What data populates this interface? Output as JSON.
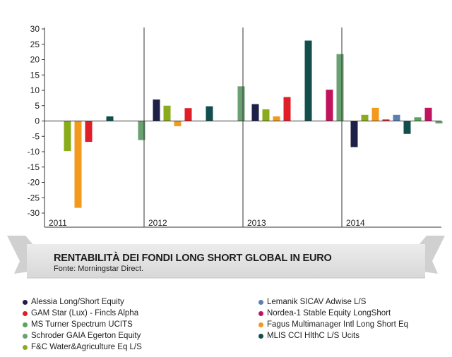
{
  "chart_data": {
    "type": "bar",
    "title": "RENTABILITÀ DEI  FONDI LONG SHORT GLOBAL IN EURO",
    "source": "Fonte: Morningstar Direct.",
    "ylim": [
      -30,
      30
    ],
    "y_ticks": [
      30,
      25,
      20,
      15,
      10,
      5,
      0,
      -5,
      -10,
      -15,
      -20,
      -25,
      -30
    ],
    "x_year_labels": [
      "2011",
      "2012",
      "2013",
      "2014"
    ],
    "grid": false,
    "legend_position": "bottom",
    "series": [
      {
        "name": "Alessia Long/Short Equity",
        "color": "#1e2147",
        "values": [
          null,
          7,
          5.5,
          -8.5
        ]
      },
      {
        "name": "GAM Star (Lux) - Fincls Alpha",
        "color": "#e01e26",
        "values": [
          -6.8,
          4.2,
          7.8,
          0.5
        ]
      },
      {
        "name": "MS Turner Spectrum UCITS",
        "color": "#5aa55a",
        "values": [
          null,
          null,
          null,
          1.2
        ]
      },
      {
        "name": "Schroder GAIA Egerton Equity",
        "color": "#6aa072",
        "values": [
          -6.2,
          11.3,
          21.8,
          -0.8
        ]
      },
      {
        "name": "F&C Water&Agriculture Eq L/S",
        "color": "#8aac1c",
        "values": [
          -9.8,
          5,
          3.8,
          2
        ]
      },
      {
        "name": "Lemanik SICAV Adwise L/S",
        "color": "#5c7fb0",
        "values": [
          null,
          null,
          null,
          2
        ]
      },
      {
        "name": "Nordea-1 Stable Equity LongShort",
        "color": "#c0145e",
        "values": [
          null,
          null,
          10.2,
          4.3
        ]
      },
      {
        "name": "Fagus Multimanager Intl Long Short Eq",
        "color": "#f39a1d",
        "values": [
          -28.3,
          -1.7,
          1.5,
          4.3
        ]
      },
      {
        "name": "MLIS CCI HlthC L/S Ucits",
        "color": "#124f4c",
        "values": [
          1.5,
          4.8,
          26.2,
          -4.2
        ]
      }
    ]
  },
  "legend": {
    "left": [
      {
        "label": "Alessia Long/Short Equity",
        "color": "#1e2147"
      },
      {
        "label": "GAM Star (Lux) - Fincls Alpha",
        "color": "#e01e26"
      },
      {
        "label": "MS Turner Spectrum UCITS",
        "color": "#5aa55a"
      },
      {
        "label": "Schroder GAIA Egerton Equity",
        "color": "#6aa072"
      },
      {
        "label": "F&C Water&Agriculture Eq L/S",
        "color": "#8aac1c"
      }
    ],
    "right": [
      {
        "label": "Lemanik SICAV Adwise L/S",
        "color": "#5c7fb0"
      },
      {
        "label": "Nordea-1 Stable Equity LongShort",
        "color": "#c0145e"
      },
      {
        "label": "Fagus Multimanager Intl Long Short Eq",
        "color": "#f39a1d"
      },
      {
        "label": "MLIS CCI HlthC L/S Ucits",
        "color": "#124f4c"
      }
    ]
  }
}
